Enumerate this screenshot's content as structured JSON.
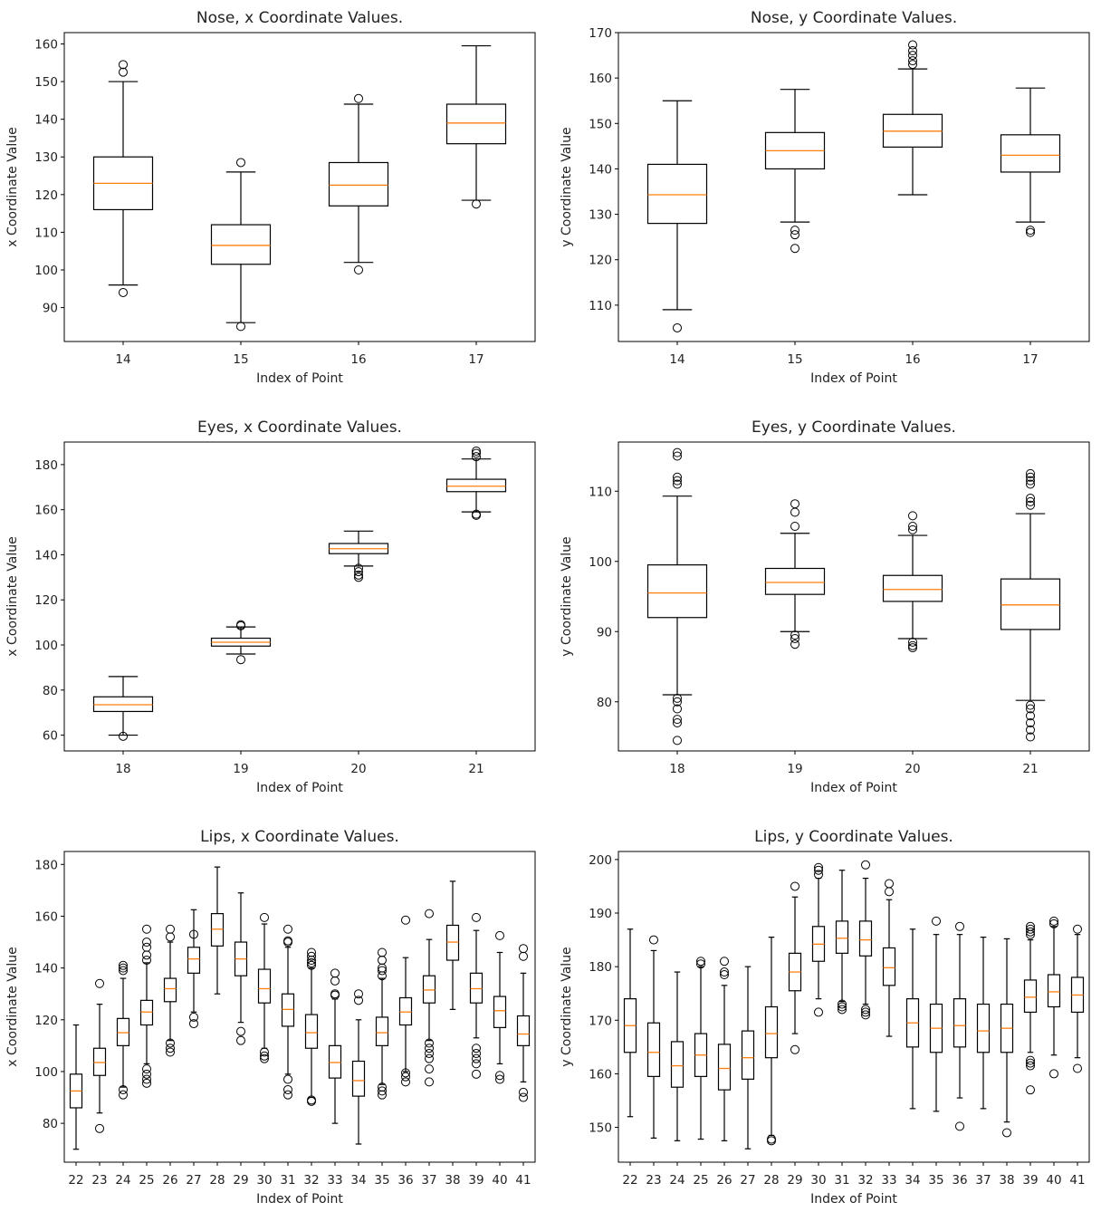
{
  "chart_data": [
    {
      "type": "boxplot",
      "title": "Nose, x Coordinate Values.",
      "xlabel": "Index of Point",
      "ylabel": "x Coordinate Value",
      "categories": [
        "14",
        "15",
        "16",
        "17"
      ],
      "ylim": [
        81,
        163
      ],
      "yticks": [
        90,
        100,
        110,
        120,
        130,
        140,
        150,
        160
      ],
      "boxes": [
        {
          "whislo": 96,
          "q1": 116,
          "med": 123,
          "q3": 130,
          "whishi": 150,
          "fliers": [
            94,
            152.5,
            154.5
          ]
        },
        {
          "whislo": 86,
          "q1": 101.5,
          "med": 106.5,
          "q3": 112,
          "whishi": 126,
          "fliers": [
            85,
            128.5
          ]
        },
        {
          "whislo": 102,
          "q1": 117,
          "med": 122.5,
          "q3": 128.5,
          "whishi": 144,
          "fliers": [
            100,
            145.5
          ]
        },
        {
          "whislo": 118.5,
          "q1": 133.5,
          "med": 139,
          "q3": 144,
          "whishi": 159.5,
          "fliers": [
            117.5
          ]
        }
      ]
    },
    {
      "type": "boxplot",
      "title": "Nose, y Coordinate Values.",
      "xlabel": "Index of Point",
      "ylabel": "y Coordinate Value",
      "categories": [
        "14",
        "15",
        "16",
        "17"
      ],
      "ylim": [
        102,
        170
      ],
      "yticks": [
        110,
        120,
        130,
        140,
        150,
        160,
        170
      ],
      "boxes": [
        {
          "whislo": 109,
          "q1": 128,
          "med": 134.3,
          "q3": 141,
          "whishi": 155,
          "fliers": [
            105
          ]
        },
        {
          "whislo": 128.3,
          "q1": 140,
          "med": 144,
          "q3": 148,
          "whishi": 157.5,
          "fliers": [
            126.5,
            125.5,
            122.5
          ]
        },
        {
          "whislo": 134.3,
          "q1": 144.8,
          "med": 148.3,
          "q3": 152,
          "whishi": 162,
          "fliers": [
            163,
            163.8,
            165,
            166,
            167.3
          ]
        },
        {
          "whislo": 128.3,
          "q1": 139.3,
          "med": 143,
          "q3": 147.5,
          "whishi": 157.8,
          "fliers": [
            126.5,
            126
          ]
        }
      ]
    },
    {
      "type": "boxplot",
      "title": "Eyes, x Coordinate Values.",
      "xlabel": "Index of Point",
      "ylabel": "x Coordinate Value",
      "categories": [
        "18",
        "19",
        "20",
        "21"
      ],
      "ylim": [
        53,
        190
      ],
      "yticks": [
        60,
        80,
        100,
        120,
        140,
        160,
        180
      ],
      "boxes": [
        {
          "whislo": 60,
          "q1": 70.5,
          "med": 73.5,
          "q3": 77,
          "whishi": 86,
          "fliers": [
            59.5
          ]
        },
        {
          "whislo": 96,
          "q1": 99.5,
          "med": 101.2,
          "q3": 103,
          "whishi": 108,
          "fliers": [
            93.5,
            109,
            108.5
          ]
        },
        {
          "whislo": 135,
          "q1": 140.5,
          "med": 142.7,
          "q3": 145,
          "whishi": 150.5,
          "fliers": [
            134,
            132.5,
            131,
            130
          ]
        },
        {
          "whislo": 159,
          "q1": 168,
          "med": 170.4,
          "q3": 173.5,
          "whishi": 182.5,
          "fliers": [
            158,
            157.5,
            183.5,
            185,
            186
          ]
        }
      ]
    },
    {
      "type": "boxplot",
      "title": "Eyes, y Coordinate Values.",
      "xlabel": "Index of Point",
      "ylabel": "y Coordinate Value",
      "categories": [
        "18",
        "19",
        "20",
        "21"
      ],
      "ylim": [
        73,
        117
      ],
      "yticks": [
        80,
        90,
        100,
        110
      ],
      "boxes": [
        {
          "whislo": 81,
          "q1": 92,
          "med": 95.5,
          "q3": 99.5,
          "whishi": 109.3,
          "fliers": [
            80.5,
            80,
            79,
            77.5,
            77,
            74.5,
            111,
            111.5,
            112,
            115,
            115.5
          ]
        },
        {
          "whislo": 90,
          "q1": 95.3,
          "med": 97,
          "q3": 99,
          "whishi": 104,
          "fliers": [
            89.5,
            89,
            88.2,
            105,
            107,
            108.2
          ]
        },
        {
          "whislo": 89,
          "q1": 94.3,
          "med": 96,
          "q3": 98,
          "whishi": 103.7,
          "fliers": [
            88.5,
            88,
            87.7,
            104.5,
            105,
            106.5
          ]
        },
        {
          "whislo": 80.2,
          "q1": 90.3,
          "med": 93.8,
          "q3": 97.5,
          "whishi": 106.8,
          "fliers": [
            79.5,
            79,
            78,
            77,
            76,
            75,
            108,
            108.5,
            109,
            111,
            111.5,
            112,
            112.5
          ]
        }
      ]
    },
    {
      "type": "boxplot",
      "title": "Lips, x Coordinate Values.",
      "xlabel": "Index of Point",
      "ylabel": "x Coordinate Value",
      "categories": [
        "22",
        "23",
        "24",
        "25",
        "26",
        "27",
        "28",
        "29",
        "30",
        "31",
        "32",
        "33",
        "34",
        "35",
        "36",
        "37",
        "38",
        "39",
        "40",
        "41"
      ],
      "ylim": [
        65,
        185
      ],
      "yticks": [
        80,
        100,
        120,
        140,
        160,
        180
      ],
      "boxes": [
        {
          "whislo": 70,
          "q1": 86,
          "med": 92.5,
          "q3": 99,
          "whishi": 118,
          "fliers": []
        },
        {
          "whislo": 84,
          "q1": 98.5,
          "med": 103.5,
          "q3": 109,
          "whishi": 126,
          "fliers": [
            78,
            134
          ]
        },
        {
          "whislo": 94,
          "q1": 110,
          "med": 115,
          "q3": 120.5,
          "whishi": 136,
          "fliers": [
            93,
            91,
            139,
            140,
            141
          ]
        },
        {
          "whislo": 103,
          "q1": 118,
          "med": 123,
          "q3": 127.5,
          "whishi": 142,
          "fliers": [
            101,
            99,
            97,
            95.5,
            143,
            145,
            148,
            150,
            155
          ]
        },
        {
          "whislo": 112,
          "q1": 127,
          "med": 132,
          "q3": 136,
          "whishi": 150,
          "fliers": [
            111,
            109,
            107.5,
            152,
            155
          ]
        },
        {
          "whislo": 123,
          "q1": 138,
          "med": 143.5,
          "q3": 148,
          "whishi": 162.5,
          "fliers": [
            121,
            118.5,
            153
          ]
        },
        {
          "whislo": 130,
          "q1": 148.5,
          "med": 155,
          "q3": 161,
          "whishi": 179,
          "fliers": []
        },
        {
          "whislo": 119,
          "q1": 137,
          "med": 143.5,
          "q3": 150,
          "whishi": 169,
          "fliers": [
            115.5,
            112
          ]
        },
        {
          "whislo": 109,
          "q1": 126.5,
          "med": 132,
          "q3": 139.5,
          "whishi": 157,
          "fliers": [
            107.5,
            106,
            105,
            159.5
          ]
        },
        {
          "whislo": 99,
          "q1": 117.5,
          "med": 124,
          "q3": 130,
          "whishi": 148,
          "fliers": [
            97,
            93,
            91,
            150,
            150.5,
            155
          ]
        },
        {
          "whislo": 90,
          "q1": 109,
          "med": 115,
          "q3": 122,
          "whishi": 140,
          "fliers": [
            89,
            88.5,
            141,
            142,
            143,
            144.5,
            146
          ]
        },
        {
          "whislo": 80,
          "q1": 97.5,
          "med": 103.5,
          "q3": 110,
          "whishi": 128,
          "fliers": [
            129.5,
            130,
            135,
            138
          ]
        },
        {
          "whislo": 72,
          "q1": 90.5,
          "med": 96.5,
          "q3": 104,
          "whishi": 120,
          "fliers": [
            127.5,
            130
          ]
        },
        {
          "whislo": 95,
          "q1": 110,
          "med": 115,
          "q3": 121,
          "whishi": 136,
          "fliers": [
            94,
            92.5,
            91,
            137,
            139,
            140,
            143,
            146
          ]
        },
        {
          "whislo": 100,
          "q1": 118,
          "med": 123,
          "q3": 128.5,
          "whishi": 144,
          "fliers": [
            99.5,
            98,
            96,
            158.5
          ]
        },
        {
          "whislo": 112,
          "q1": 126.5,
          "med": 131.5,
          "q3": 137,
          "whishi": 151,
          "fliers": [
            111,
            109,
            107,
            105,
            101,
            96,
            161
          ]
        },
        {
          "whislo": 124,
          "q1": 143,
          "med": 150,
          "q3": 156.5,
          "whishi": 173.5,
          "fliers": []
        },
        {
          "whislo": 113,
          "q1": 126.5,
          "med": 132,
          "q3": 138,
          "whishi": 154.5,
          "fliers": [
            109,
            107,
            105,
            103,
            99,
            159.5
          ]
        },
        {
          "whislo": 103,
          "q1": 117,
          "med": 123.5,
          "q3": 129,
          "whishi": 146,
          "fliers": [
            98.5,
            97,
            152.5
          ]
        },
        {
          "whislo": 96,
          "q1": 110,
          "med": 114.5,
          "q3": 121.5,
          "whishi": 138,
          "fliers": [
            92,
            90,
            144.5,
            147.5
          ]
        }
      ]
    },
    {
      "type": "boxplot",
      "title": "Lips, y Coordinate Values.",
      "xlabel": "Index of Point",
      "ylabel": "y Coordinate Value",
      "categories": [
        "22",
        "23",
        "24",
        "25",
        "26",
        "27",
        "28",
        "29",
        "30",
        "31",
        "32",
        "33",
        "34",
        "35",
        "36",
        "37",
        "38",
        "39",
        "40",
        "41"
      ],
      "ylim": [
        143.5,
        201.5
      ],
      "yticks": [
        150,
        160,
        170,
        180,
        190,
        200
      ],
      "boxes": [
        {
          "whislo": 152,
          "q1": 164,
          "med": 169,
          "q3": 174,
          "whishi": 187,
          "fliers": []
        },
        {
          "whislo": 148,
          "q1": 159.5,
          "med": 164,
          "q3": 169.5,
          "whishi": 183,
          "fliers": [
            185
          ]
        },
        {
          "whislo": 147.5,
          "q1": 157.5,
          "med": 161.5,
          "q3": 166,
          "whishi": 179,
          "fliers": []
        },
        {
          "whislo": 147.8,
          "q1": 159.5,
          "med": 163.5,
          "q3": 167.5,
          "whishi": 180,
          "fliers": [
            180.5,
            181
          ]
        },
        {
          "whislo": 147.5,
          "q1": 157,
          "med": 161,
          "q3": 165.5,
          "whishi": 176.5,
          "fliers": [
            178.5,
            179,
            181
          ]
        },
        {
          "whislo": 146,
          "q1": 159,
          "med": 163,
          "q3": 168,
          "whishi": 180,
          "fliers": []
        },
        {
          "whislo": 148.5,
          "q1": 163,
          "med": 167.5,
          "q3": 172.5,
          "whishi": 185.5,
          "fliers": [
            147.8,
            147.5
          ]
        },
        {
          "whislo": 167.5,
          "q1": 175.5,
          "med": 179,
          "q3": 182.5,
          "whishi": 193,
          "fliers": [
            164.5,
            195
          ]
        },
        {
          "whislo": 174,
          "q1": 181,
          "med": 184.2,
          "q3": 187.5,
          "whishi": 196.5,
          "fliers": [
            171.5,
            197.2,
            198,
            198.5
          ]
        },
        {
          "whislo": 173.5,
          "q1": 182.5,
          "med": 185.3,
          "q3": 188.5,
          "whishi": 198,
          "fliers": [
            172,
            172.5,
            173
          ]
        },
        {
          "whislo": 173,
          "q1": 182,
          "med": 185,
          "q3": 188.5,
          "whishi": 196.5,
          "fliers": [
            171,
            171.5,
            172,
            199
          ]
        },
        {
          "whislo": 167,
          "q1": 176.5,
          "med": 179.8,
          "q3": 183.5,
          "whishi": 192.5,
          "fliers": [
            194,
            195.5
          ]
        },
        {
          "whislo": 153.5,
          "q1": 165,
          "med": 169.5,
          "q3": 174,
          "whishi": 187,
          "fliers": []
        },
        {
          "whislo": 153,
          "q1": 164,
          "med": 168.5,
          "q3": 173,
          "whishi": 186,
          "fliers": [
            188.5
          ]
        },
        {
          "whislo": 155.5,
          "q1": 165,
          "med": 169,
          "q3": 174,
          "whishi": 186,
          "fliers": [
            150.2,
            187.5
          ]
        },
        {
          "whislo": 153.5,
          "q1": 164,
          "med": 168,
          "q3": 173,
          "whishi": 185.5,
          "fliers": []
        },
        {
          "whislo": 151,
          "q1": 164,
          "med": 168.5,
          "q3": 173,
          "whishi": 185.2,
          "fliers": [
            149
          ]
        },
        {
          "whislo": 164,
          "q1": 171.5,
          "med": 174.3,
          "q3": 177.5,
          "whishi": 185,
          "fliers": [
            162.5,
            162,
            161.5,
            157,
            186,
            186.5,
            187,
            187.5
          ]
        },
        {
          "whislo": 163.5,
          "q1": 172.5,
          "med": 175.3,
          "q3": 178.5,
          "whishi": 187.5,
          "fliers": [
            160,
            188,
            188.5
          ]
        },
        {
          "whislo": 163,
          "q1": 171.5,
          "med": 174.7,
          "q3": 178,
          "whishi": 186,
          "fliers": [
            161,
            187
          ]
        }
      ]
    }
  ]
}
